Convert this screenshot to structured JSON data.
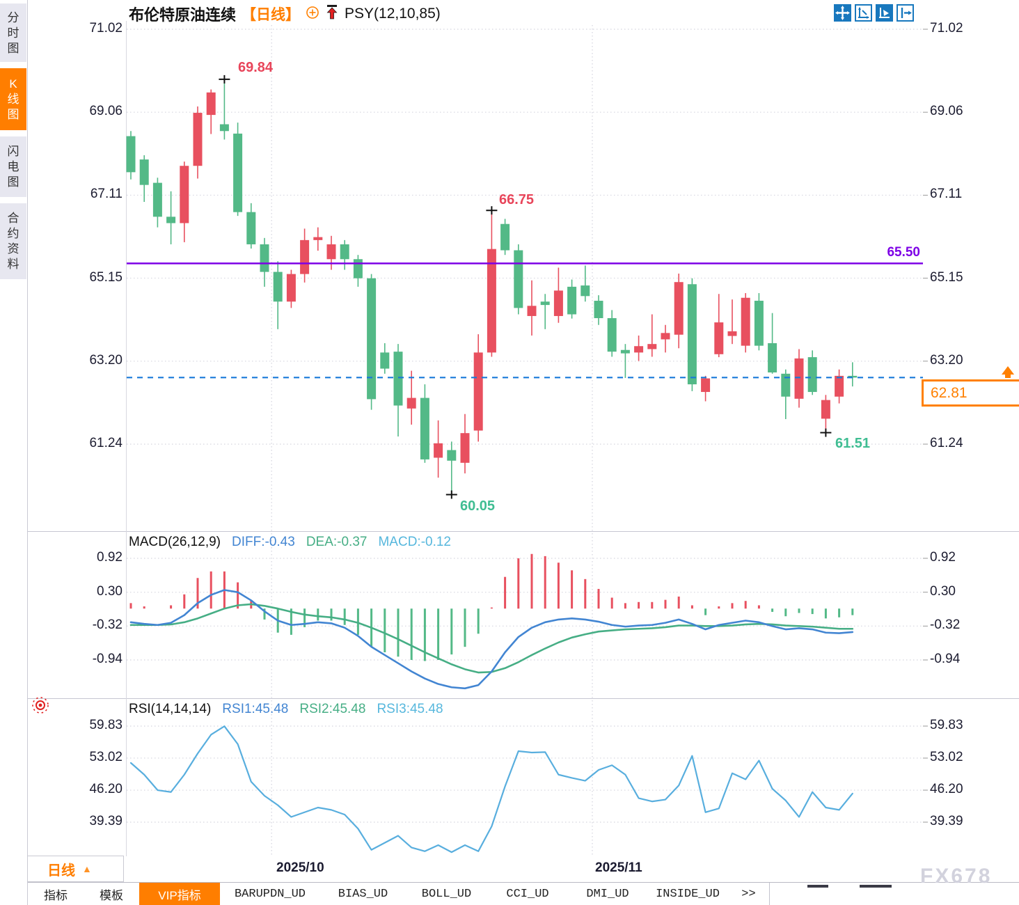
{
  "app": {
    "watermark": "FX678",
    "colors": {
      "up_candle": "#e8505f",
      "down_candle": "#53b987",
      "accent": "#ff7e00",
      "purple_line": "#7d00e6",
      "dashed_price_line": "#1779d9",
      "macd_diff_line": "#4285d2",
      "macd_dea_line": "#46ae85",
      "rsi_line": "#58aede",
      "toolbar_blue": "#1878be"
    }
  },
  "sidebar": {
    "items": [
      {
        "label": "分时图",
        "active": false
      },
      {
        "label": "K线图",
        "active": true
      },
      {
        "label": "闪电图",
        "active": false
      },
      {
        "label": "合约资料",
        "active": false
      }
    ]
  },
  "header": {
    "symbol": "布伦特原油连续",
    "period_tag": "【日线】",
    "indicator": "PSY(12,10,85)",
    "toolbar_icons": [
      "move-icon",
      "axis-zoom-icon",
      "axis-pointer-icon",
      "pan-right-icon"
    ]
  },
  "price_panel": {
    "y_ticks": [
      "71.02",
      "69.06",
      "67.11",
      "65.15",
      "63.20",
      "61.24"
    ],
    "hline_label": "65.50",
    "last_price": "62.81",
    "annotations": {
      "high1": "69.84",
      "high2": "66.75",
      "low1": "60.05",
      "low2": "61.51"
    }
  },
  "macd_panel": {
    "title": "MACD(26,12,9)",
    "diff_label": "DIFF:-0.43",
    "dea_label": "DEA:-0.37",
    "macd_label": "MACD:-0.12",
    "y_ticks": [
      "0.92",
      "0.30",
      "-0.32",
      "-0.94"
    ]
  },
  "rsi_panel": {
    "title": "RSI(14,14,14)",
    "rsi1_label": "RSI1:45.48",
    "rsi2_label": "RSI2:45.48",
    "rsi3_label": "RSI3:45.48",
    "y_ticks": [
      "59.83",
      "53.02",
      "46.20",
      "39.39"
    ]
  },
  "x_axis": {
    "labels": [
      "2025/10",
      "2025/11"
    ],
    "period_selector": "日线"
  },
  "bottom_tabs": [
    {
      "label": "指标",
      "active": false,
      "cjk": true
    },
    {
      "label": "模板",
      "active": false,
      "cjk": true
    },
    {
      "label": "VIP指标",
      "active": true,
      "cjk": true
    },
    {
      "label": "BARUPDN_UD",
      "active": false,
      "cjk": false
    },
    {
      "label": "BIAS_UD",
      "active": false,
      "cjk": false
    },
    {
      "label": "BOLL_UD",
      "active": false,
      "cjk": false
    },
    {
      "label": "CCI_UD",
      "active": false,
      "cjk": false
    },
    {
      "label": "DMI_UD",
      "active": false,
      "cjk": false
    },
    {
      "label": "INSIDE_UD",
      "active": false,
      "cjk": false
    },
    {
      "label": ">>",
      "active": false,
      "cjk": false
    }
  ],
  "chart_data": {
    "type": "candlestick+macd+rsi",
    "symbol": "布伦特原油连续",
    "period": "日线",
    "price_ticks": [
      71.02,
      69.06,
      67.11,
      65.15,
      63.2,
      61.24
    ],
    "price_range": [
      60.0,
      71.02
    ],
    "hline": 65.5,
    "last_price": 62.81,
    "candles": [
      [
        68.5,
        68.62,
        67.48,
        67.65
      ],
      [
        67.95,
        68.05,
        66.95,
        67.35
      ],
      [
        67.4,
        67.52,
        66.35,
        66.6
      ],
      [
        66.6,
        67.2,
        65.95,
        66.45
      ],
      [
        66.45,
        67.9,
        66.0,
        67.8
      ],
      [
        67.8,
        69.2,
        67.5,
        69.05
      ],
      [
        69.0,
        69.6,
        68.55,
        69.53
      ],
      [
        68.78,
        69.84,
        68.42,
        68.62
      ],
      [
        68.56,
        68.82,
        66.62,
        66.71
      ],
      [
        66.71,
        66.92,
        65.85,
        65.95
      ],
      [
        65.95,
        66.1,
        64.95,
        65.3
      ],
      [
        65.3,
        65.55,
        63.95,
        64.6
      ],
      [
        64.6,
        65.35,
        64.45,
        65.25
      ],
      [
        65.25,
        66.32,
        65.05,
        66.05
      ],
      [
        66.05,
        66.35,
        65.8,
        66.12
      ],
      [
        65.6,
        66.15,
        65.35,
        65.95
      ],
      [
        65.95,
        66.05,
        65.35,
        65.6
      ],
      [
        65.6,
        65.7,
        64.95,
        65.15
      ],
      [
        65.15,
        65.25,
        62.05,
        62.3
      ],
      [
        63.4,
        63.62,
        62.9,
        63.02
      ],
      [
        63.42,
        63.6,
        61.42,
        62.15
      ],
      [
        62.08,
        62.97,
        61.7,
        62.33
      ],
      [
        62.33,
        62.65,
        60.8,
        60.88
      ],
      [
        60.92,
        61.8,
        60.45,
        61.26
      ],
      [
        61.1,
        61.3,
        60.05,
        60.85
      ],
      [
        60.8,
        61.95,
        60.55,
        61.5
      ],
      [
        61.56,
        63.83,
        61.3,
        63.4
      ],
      [
        63.4,
        66.75,
        63.3,
        65.84
      ],
      [
        66.43,
        66.55,
        65.7,
        65.81
      ],
      [
        65.81,
        65.95,
        64.3,
        64.45
      ],
      [
        64.26,
        65.1,
        63.8,
        64.5
      ],
      [
        64.6,
        64.78,
        63.95,
        64.52
      ],
      [
        64.26,
        65.4,
        64.1,
        64.86
      ],
      [
        64.95,
        65.12,
        64.2,
        64.3
      ],
      [
        64.98,
        65.45,
        64.6,
        64.73
      ],
      [
        64.62,
        64.75,
        64.05,
        64.21
      ],
      [
        64.21,
        64.4,
        63.3,
        63.42
      ],
      [
        63.46,
        63.6,
        62.8,
        63.38
      ],
      [
        63.4,
        63.8,
        63.2,
        63.55
      ],
      [
        63.48,
        64.3,
        63.3,
        63.6
      ],
      [
        63.71,
        64.05,
        63.4,
        63.86
      ],
      [
        63.82,
        65.26,
        63.5,
        65.06
      ],
      [
        65.01,
        65.15,
        62.49,
        62.65
      ],
      [
        62.47,
        62.85,
        62.25,
        62.79
      ],
      [
        63.36,
        64.78,
        63.29,
        64.11
      ],
      [
        63.79,
        64.65,
        63.6,
        63.9
      ],
      [
        63.56,
        64.8,
        63.4,
        64.69
      ],
      [
        64.62,
        64.8,
        63.45,
        63.56
      ],
      [
        63.62,
        64.33,
        62.9,
        62.93
      ],
      [
        62.9,
        63.0,
        61.83,
        62.36
      ],
      [
        62.31,
        63.48,
        62.1,
        63.26
      ],
      [
        63.29,
        63.45,
        62.4,
        62.47
      ],
      [
        61.84,
        62.4,
        61.51,
        62.28
      ],
      [
        62.36,
        63.0,
        62.2,
        62.85
      ],
      [
        62.85,
        63.17,
        62.6,
        62.81
      ]
    ],
    "annotations": [
      {
        "candle": 8,
        "price": 69.84,
        "text": "69.84",
        "side": "high"
      },
      {
        "candle": 28,
        "price": 66.75,
        "text": "66.75",
        "side": "high"
      },
      {
        "candle": 25,
        "price": 60.05,
        "text": "60.05",
        "side": "low"
      },
      {
        "candle": 53,
        "price": 61.51,
        "text": "61.51",
        "side": "low"
      }
    ],
    "macd": {
      "params": "26,12,9",
      "diff": -0.43,
      "dea": -0.37,
      "macd": -0.12,
      "ticks": [
        0.92,
        0.3,
        -0.32,
        -0.94
      ],
      "diff_series": [
        -0.25,
        -0.28,
        -0.3,
        -0.26,
        -0.12,
        0.1,
        0.25,
        0.34,
        0.3,
        0.15,
        -0.05,
        -0.22,
        -0.3,
        -0.28,
        -0.25,
        -0.27,
        -0.35,
        -0.5,
        -0.7,
        -0.85,
        -1.0,
        -1.15,
        -1.28,
        -1.38,
        -1.44,
        -1.46,
        -1.4,
        -1.15,
        -0.8,
        -0.52,
        -0.35,
        -0.25,
        -0.2,
        -0.18,
        -0.2,
        -0.24,
        -0.3,
        -0.33,
        -0.31,
        -0.3,
        -0.26,
        -0.2,
        -0.28,
        -0.38,
        -0.3,
        -0.26,
        -0.22,
        -0.25,
        -0.32,
        -0.38,
        -0.36,
        -0.38,
        -0.44,
        -0.45,
        -0.43
      ],
      "dea_series": [
        -0.3,
        -0.3,
        -0.3,
        -0.29,
        -0.25,
        -0.18,
        -0.09,
        0.0,
        0.06,
        0.08,
        0.05,
        0.0,
        -0.06,
        -0.11,
        -0.14,
        -0.16,
        -0.2,
        -0.26,
        -0.35,
        -0.45,
        -0.56,
        -0.68,
        -0.8,
        -0.91,
        -1.02,
        -1.11,
        -1.17,
        -1.16,
        -1.09,
        -0.98,
        -0.85,
        -0.73,
        -0.62,
        -0.53,
        -0.47,
        -0.42,
        -0.4,
        -0.38,
        -0.37,
        -0.36,
        -0.34,
        -0.31,
        -0.31,
        -0.32,
        -0.32,
        -0.31,
        -0.29,
        -0.28,
        -0.29,
        -0.31,
        -0.32,
        -0.33,
        -0.35,
        -0.37,
        -0.37
      ]
    },
    "rsi": {
      "params": "14,14,14",
      "rsi1": 45.48,
      "rsi2": 45.48,
      "rsi3": 45.48,
      "ticks": [
        59.83,
        53.02,
        46.2,
        39.39
      ],
      "series": [
        52,
        49.5,
        46.2,
        45.8,
        49.5,
        54,
        58,
        59.8,
        56,
        48,
        45,
        43,
        40.5,
        41.5,
        42.5,
        42,
        41,
        38,
        33.5,
        35,
        36.5,
        34,
        33.2,
        34.5,
        33,
        34.5,
        33.2,
        38.5,
        47,
        54.5,
        54.2,
        54.3,
        49.5,
        48.8,
        48.2,
        50.5,
        51.5,
        49.5,
        44.5,
        43.8,
        44.2,
        47.2,
        53.5,
        41.5,
        42.3,
        49.8,
        48.5,
        52.5,
        46.5,
        44,
        40.5,
        45.8,
        42.5,
        42,
        45.48
      ]
    },
    "month_start_candles": [
      12,
      36
    ],
    "x_labels": [
      {
        "text": "2025/10",
        "x": 397
      },
      {
        "text": "2025/11",
        "x": 855
      }
    ]
  }
}
